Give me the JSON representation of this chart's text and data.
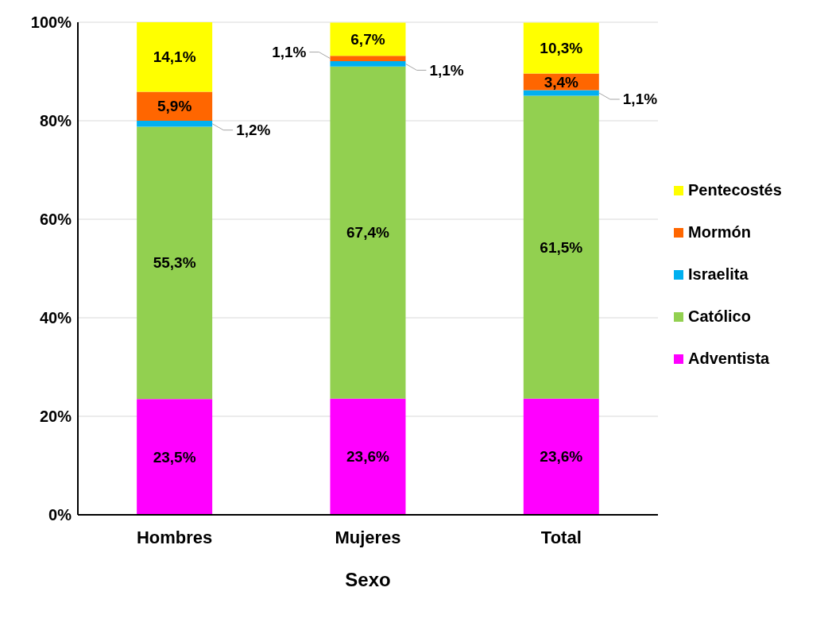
{
  "chart_data": {
    "type": "bar",
    "stacked": true,
    "categories": [
      "Hombres",
      "Mujeres",
      "Total"
    ],
    "xlabel": "Sexo",
    "ylim": [
      0,
      100
    ],
    "yticks": [
      {
        "value": 0,
        "label": "0%"
      },
      {
        "value": 20,
        "label": "20%"
      },
      {
        "value": 40,
        "label": "40%"
      },
      {
        "value": 60,
        "label": "60%"
      },
      {
        "value": 80,
        "label": "80%"
      },
      {
        "value": 100,
        "label": "100%"
      }
    ],
    "grid": "y",
    "legend": "right",
    "series": [
      {
        "name": "Adventista",
        "color": "#ff00ff",
        "values": [
          23.5,
          23.6,
          23.6
        ],
        "value_labels": [
          "23,5%",
          "23,6%",
          "23,6%"
        ]
      },
      {
        "name": "Católico",
        "color": "#92d050",
        "values": [
          55.3,
          67.4,
          61.5
        ],
        "value_labels": [
          "55,3%",
          "67,4%",
          "61,5%"
        ]
      },
      {
        "name": "Israelita",
        "color": "#00b0f0",
        "values": [
          1.2,
          1.1,
          1.1
        ],
        "value_labels": [
          "1,2%",
          "1,1%",
          "1,1%"
        ]
      },
      {
        "name": "Mormón",
        "color": "#ff6600",
        "values": [
          5.9,
          1.1,
          3.4
        ],
        "value_labels": [
          "5,9%",
          "1,1%",
          "3,4%"
        ]
      },
      {
        "name": "Pentecostés",
        "color": "#ffff00",
        "values": [
          14.1,
          6.7,
          10.3
        ],
        "value_labels": [
          "14,1%",
          "6,7%",
          "10,3%"
        ]
      }
    ]
  }
}
